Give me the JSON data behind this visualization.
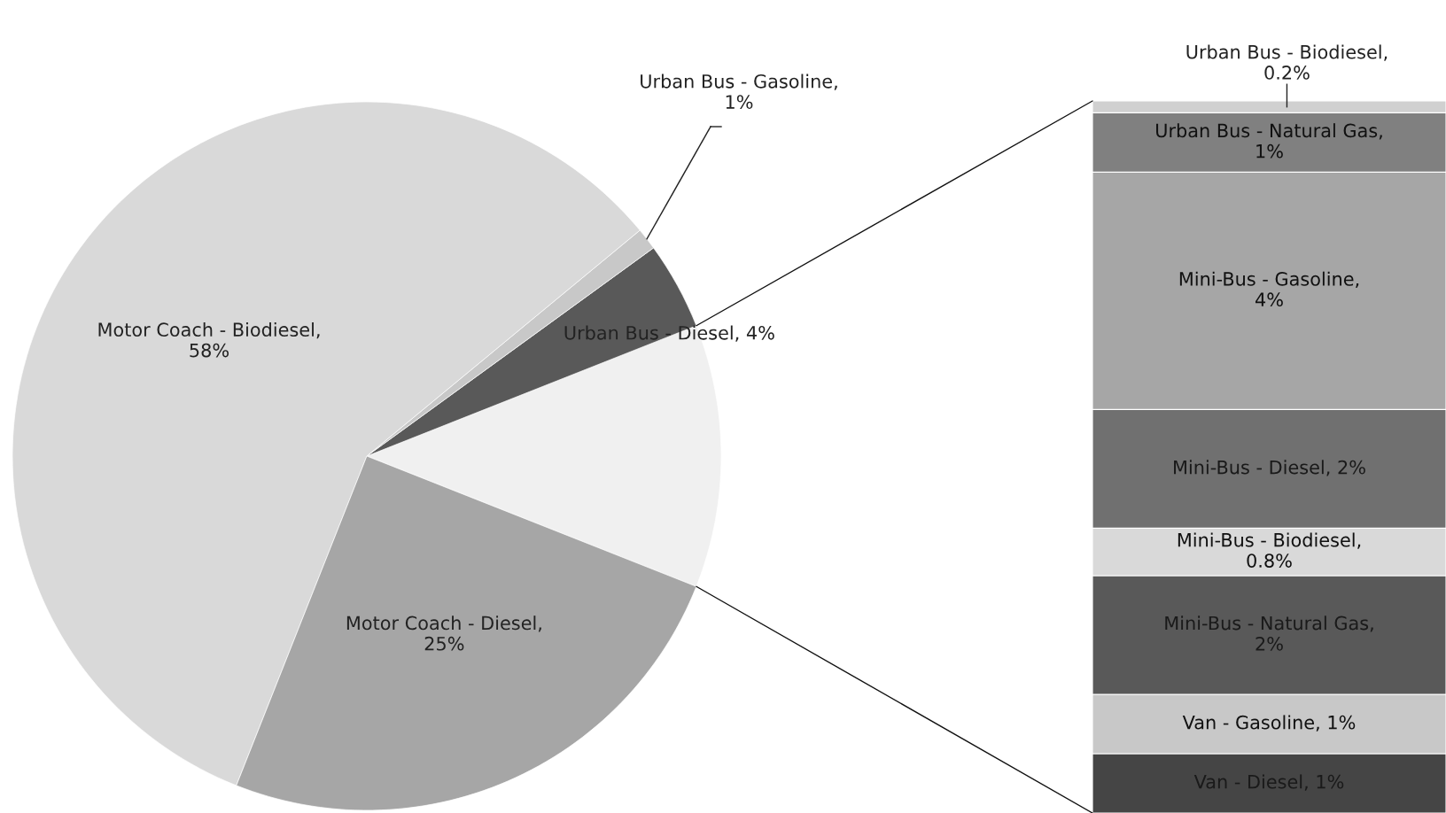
{
  "chart_data": [
    {
      "type": "pie",
      "categories": [
        null,
        "Urban Bus - Diesel, 4%",
        "Urban Bus - Gasoline, 1%",
        "Motor Coach - Biodiesel, 58%",
        "Motor Coach - Diesel, 25%"
      ],
      "values": [
        12,
        4,
        1,
        58,
        25
      ],
      "colors": [
        "#f0f0f0",
        "#595959",
        "#c8c8c8",
        "#d9d9d9",
        "#a6a6a6"
      ]
    },
    {
      "type": "bar",
      "stacked": true,
      "categories": [
        null
      ],
      "series": [
        {
          "name": "Van - Diesel,",
          "color": "#454545",
          "values": [
            1
          ],
          "value_labels": [
            "1%"
          ]
        },
        {
          "name": "Van - Gasoline,",
          "color": "#c8c8c8",
          "values": [
            1
          ],
          "value_labels": [
            "1%"
          ]
        },
        {
          "name": "Mini-Bus - Natural Gas,",
          "color": "#595959",
          "values": [
            2
          ],
          "value_labels": [
            "2%"
          ]
        },
        {
          "name": "Mini-Bus - Biodiesel,",
          "color": "#d9d9d9",
          "values": [
            0.8
          ],
          "value_labels": [
            "0.8%"
          ]
        },
        {
          "name": "Mini-Bus - Diesel,",
          "color": "#707070",
          "values": [
            2
          ],
          "value_labels": [
            "2%"
          ]
        },
        {
          "name": "Mini-Bus - Gasoline,",
          "color": "#a6a6a6",
          "values": [
            4
          ],
          "value_labels": [
            "4%"
          ]
        },
        {
          "name": "Urban Bus - Natural Gas,",
          "color": "#808080",
          "values": [
            1
          ],
          "value_labels": [
            "1%"
          ]
        },
        {
          "name": "Urban Bus - Biodiesel,",
          "color": "#d0d0d0",
          "values": [
            0.2
          ],
          "value_labels": [
            "0.2%"
          ]
        }
      ]
    }
  ]
}
